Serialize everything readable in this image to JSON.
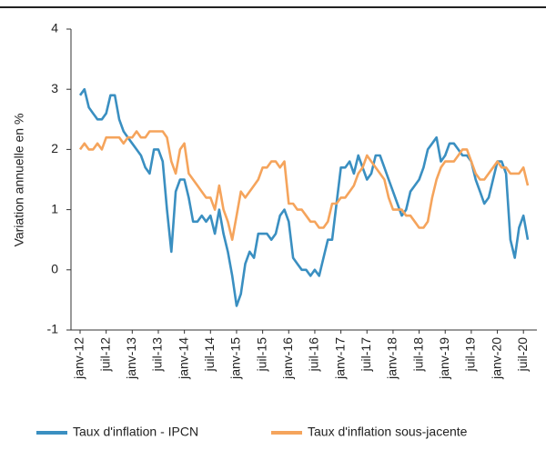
{
  "chart_data": {
    "type": "line",
    "y_label": "Variation annuelle en %",
    "categories": [
      "janv-12",
      null,
      null,
      null,
      null,
      null,
      "juil-12",
      null,
      null,
      null,
      null,
      null,
      "janv-13",
      null,
      null,
      null,
      null,
      null,
      "juil-13",
      null,
      null,
      null,
      null,
      null,
      "janv-14",
      null,
      null,
      null,
      null,
      null,
      "juil-14",
      null,
      null,
      null,
      null,
      null,
      "janv-15",
      null,
      null,
      null,
      null,
      null,
      "juil-15",
      null,
      null,
      null,
      null,
      null,
      "janv-16",
      null,
      null,
      null,
      null,
      null,
      "juil-16",
      null,
      null,
      null,
      null,
      null,
      "janv-17",
      null,
      null,
      null,
      null,
      null,
      "juil-17",
      null,
      null,
      null,
      null,
      null,
      "janv-18",
      null,
      null,
      null,
      null,
      null,
      "juil-18",
      null,
      null,
      null,
      null,
      null,
      "janv-19",
      null,
      null,
      null,
      null,
      null,
      "juil-19",
      null,
      null,
      null,
      null,
      null,
      "janv-20",
      null,
      null,
      null,
      null,
      null,
      "juil-20",
      null
    ],
    "series": [
      {
        "name": "Taux d'inflation - IPCN",
        "color": "#3a8fc1",
        "values": [
          2.9,
          3.0,
          2.7,
          2.6,
          2.5,
          2.5,
          2.6,
          2.9,
          2.9,
          2.5,
          2.3,
          2.2,
          2.1,
          2.0,
          1.9,
          1.7,
          1.6,
          2.0,
          2.0,
          1.8,
          1.0,
          0.3,
          1.3,
          1.5,
          1.5,
          1.2,
          0.8,
          0.8,
          0.9,
          0.8,
          0.9,
          0.6,
          1.0,
          0.6,
          0.3,
          -0.1,
          -0.6,
          -0.4,
          0.1,
          0.3,
          0.2,
          0.6,
          0.6,
          0.6,
          0.5,
          0.6,
          0.9,
          1.0,
          0.8,
          0.2,
          0.1,
          0.0,
          0.0,
          -0.1,
          0.0,
          -0.1,
          0.2,
          0.5,
          0.5,
          1.1,
          1.7,
          1.7,
          1.8,
          1.6,
          1.9,
          1.7,
          1.5,
          1.6,
          1.9,
          1.9,
          1.7,
          1.5,
          1.3,
          1.1,
          0.9,
          1.0,
          1.3,
          1.4,
          1.5,
          1.7,
          2.0,
          2.1,
          2.2,
          1.8,
          1.9,
          2.1,
          2.1,
          2.0,
          1.9,
          1.9,
          1.8,
          1.5,
          1.3,
          1.1,
          1.2,
          1.5,
          1.8,
          1.8,
          1.6,
          0.5,
          0.2,
          0.7,
          0.9,
          0.5
        ]
      },
      {
        "name": "Taux d'inflation sous-jacente",
        "color": "#f5a45c",
        "values": [
          2.0,
          2.1,
          2.0,
          2.0,
          2.1,
          2.0,
          2.2,
          2.2,
          2.2,
          2.2,
          2.1,
          2.2,
          2.2,
          2.3,
          2.2,
          2.2,
          2.3,
          2.3,
          2.3,
          2.3,
          2.2,
          1.8,
          1.6,
          2.0,
          2.1,
          1.6,
          1.5,
          1.4,
          1.3,
          1.2,
          1.2,
          1.0,
          1.4,
          1.0,
          0.8,
          0.5,
          0.9,
          1.3,
          1.2,
          1.3,
          1.4,
          1.5,
          1.7,
          1.7,
          1.8,
          1.8,
          1.7,
          1.8,
          1.1,
          1.1,
          1.0,
          1.0,
          0.9,
          0.8,
          0.8,
          0.7,
          0.7,
          0.8,
          1.1,
          1.1,
          1.2,
          1.2,
          1.3,
          1.4,
          1.6,
          1.7,
          1.9,
          1.8,
          1.7,
          1.6,
          1.5,
          1.2,
          1.0,
          1.0,
          1.0,
          0.9,
          0.9,
          0.8,
          0.7,
          0.7,
          0.8,
          1.2,
          1.5,
          1.7,
          1.8,
          1.8,
          1.8,
          1.9,
          2.0,
          2.0,
          1.8,
          1.6,
          1.5,
          1.5,
          1.6,
          1.7,
          1.8,
          1.7,
          1.7,
          1.6,
          1.6,
          1.6,
          1.7,
          1.4
        ]
      }
    ],
    "ylim": [
      -1,
      4
    ],
    "yticks": [
      -1,
      0,
      1,
      2,
      3,
      4
    ],
    "grid": false
  }
}
